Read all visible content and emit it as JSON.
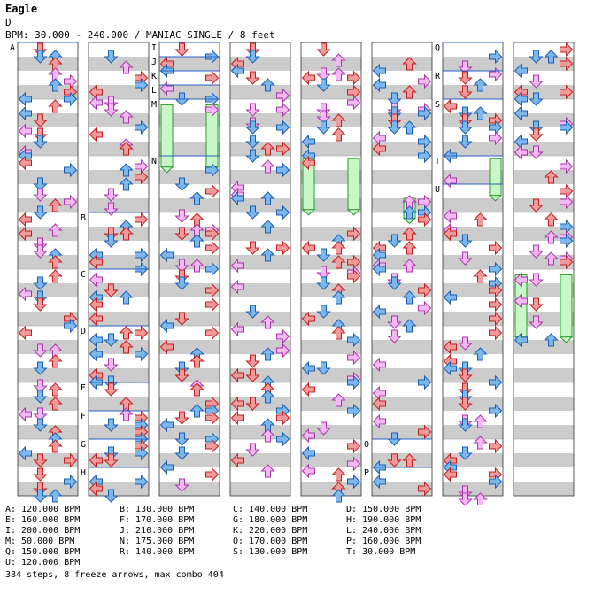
{
  "song": {
    "title": "Eagle",
    "difficulty": "D",
    "bpm_line": "BPM: 30.000 - 240.000 / MANIAC SINGLE / 8 feet"
  },
  "chart": {
    "columns": 8,
    "colors": {
      "stripe": "#cccccc",
      "border": "#333333",
      "bpm_line": "#2a60c0",
      "arrow_red": "#f29a9a",
      "arrow_red_edge": "#c02020",
      "arrow_blue": "#7cb8ee",
      "arrow_blue_edge": "#1c5fb0",
      "arrow_pink": "#f4b8f4",
      "arrow_pink_edge": "#a838a8",
      "freeze": "#c8f8c8",
      "freeze_edge": "#2a9a2a"
    },
    "bpm_markers": [
      {
        "label": "A",
        "column": 0,
        "measure": 0
      },
      {
        "label": "B",
        "column": 1,
        "measure": 3
      },
      {
        "label": "C",
        "column": 1,
        "measure": 4
      },
      {
        "label": "D",
        "column": 1,
        "measure": 5
      },
      {
        "label": "E",
        "column": 1,
        "measure": 6
      },
      {
        "label": "F",
        "column": 1,
        "measure": 6.5
      },
      {
        "label": "G",
        "column": 1,
        "measure": 7
      },
      {
        "label": "H",
        "column": 1,
        "measure": 7.5
      },
      {
        "label": "I",
        "column": 2,
        "measure": 0
      },
      {
        "label": "J",
        "column": 2,
        "measure": 0.25
      },
      {
        "label": "K",
        "column": 2,
        "measure": 0.5
      },
      {
        "label": "L",
        "column": 2,
        "measure": 0.75
      },
      {
        "label": "M",
        "column": 2,
        "measure": 1
      },
      {
        "label": "N",
        "column": 2,
        "measure": 2
      },
      {
        "label": "O",
        "column": 5,
        "measure": 7
      },
      {
        "label": "P",
        "column": 5,
        "measure": 7.5
      },
      {
        "label": "Q",
        "column": 6,
        "measure": 0
      },
      {
        "label": "R",
        "column": 6,
        "measure": 0.5
      },
      {
        "label": "S",
        "column": 6,
        "measure": 1
      },
      {
        "label": "T",
        "column": 6,
        "measure": 2
      },
      {
        "label": "U",
        "column": 6,
        "measure": 2.5
      }
    ]
  },
  "legend": [
    [
      "A: 120.000 BPM",
      "B: 130.000 BPM",
      "C: 140.000 BPM",
      "D: 150.000 BPM"
    ],
    [
      "E: 160.000 BPM",
      "F: 170.000 BPM",
      "G: 180.000 BPM",
      "H: 190.000 BPM"
    ],
    [
      "I: 200.000 BPM",
      "J: 210.000 BPM",
      "K: 220.000 BPM",
      "L: 240.000 BPM"
    ],
    [
      "M: 50.000 BPM",
      "N: 175.000 BPM",
      "O: 170.000 BPM",
      "P: 160.000 BPM"
    ],
    [
      "Q: 150.000 BPM",
      "R: 140.000 BPM",
      "S: 130.000 BPM",
      "T: 30.000 BPM"
    ],
    [
      "U: 120.000 BPM"
    ]
  ],
  "summary": "384 steps, 8 freeze arrows, max combo 404"
}
